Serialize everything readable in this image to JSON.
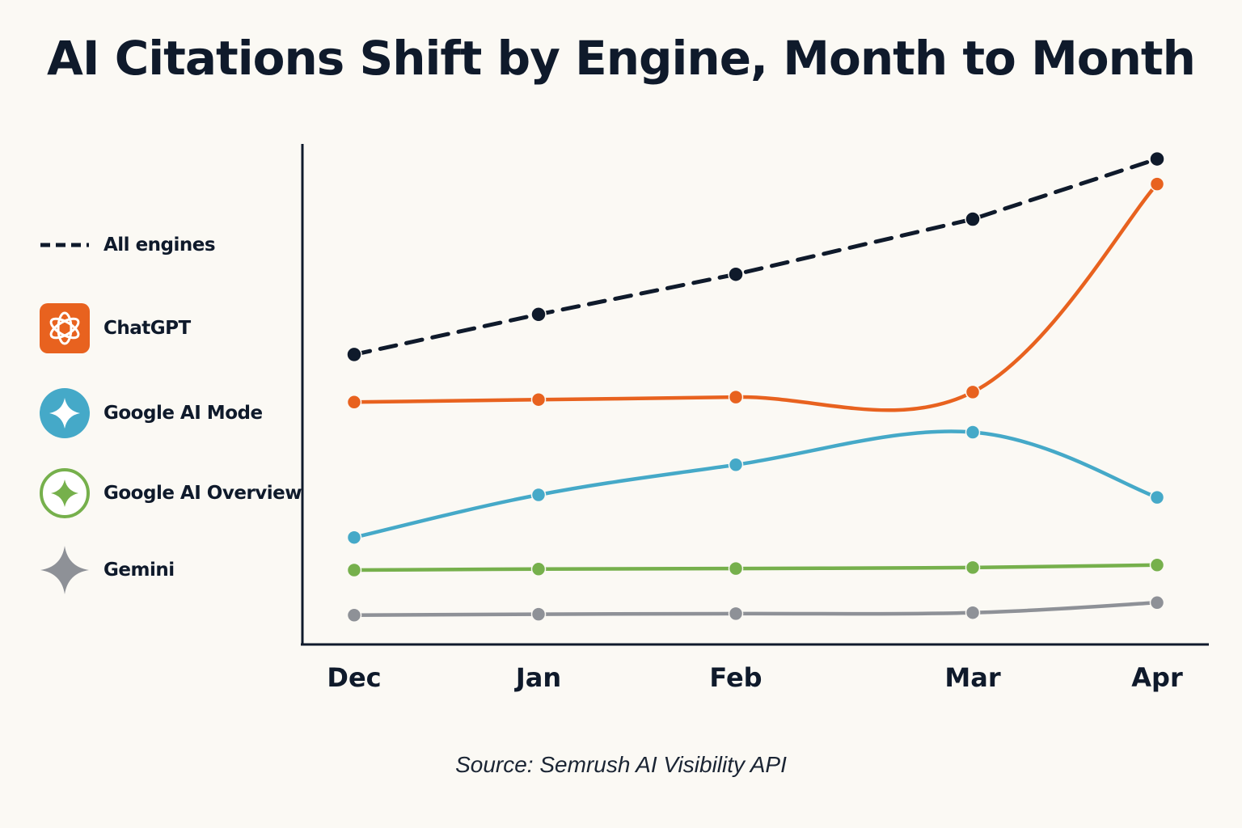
{
  "chart_data": {
    "type": "line",
    "title": "AI Citations Shift by Engine, Month to Month",
    "categories": [
      "Dec",
      "Jan",
      "Feb",
      "Mar",
      "Apr"
    ],
    "xlabel": "",
    "ylabel": "",
    "ylim": [
      0,
      100
    ],
    "y_axis_ticks_shown": false,
    "grid": false,
    "legend_position": "left",
    "series": [
      {
        "name": "All engines",
        "color": "#0f1a2b",
        "style": "dashed",
        "values": [
          58,
          66,
          74,
          85,
          97
        ]
      },
      {
        "name": "ChatGPT",
        "color": "#e8621f",
        "style": "solid",
        "icon": "openai-logo-icon",
        "values": [
          48.5,
          49,
          49.5,
          50.5,
          92
        ]
      },
      {
        "name": "Google AI Mode",
        "color": "#45a9c8",
        "style": "solid",
        "icon": "sparkle-icon",
        "values": [
          21.5,
          30,
          36,
          42.5,
          29.5
        ]
      },
      {
        "name": "Google AI Overview",
        "color": "#76b04c",
        "style": "solid",
        "icon": "sparkle-outline-icon",
        "values": [
          15,
          15.2,
          15.3,
          15.5,
          16
        ]
      },
      {
        "name": "Gemini",
        "color": "#8e9197",
        "style": "solid",
        "icon": "gemini-sparkle-icon",
        "values": [
          6,
          6.2,
          6.3,
          6.5,
          8.5
        ]
      }
    ],
    "source": "Source: Semrush AI Visibility API"
  }
}
